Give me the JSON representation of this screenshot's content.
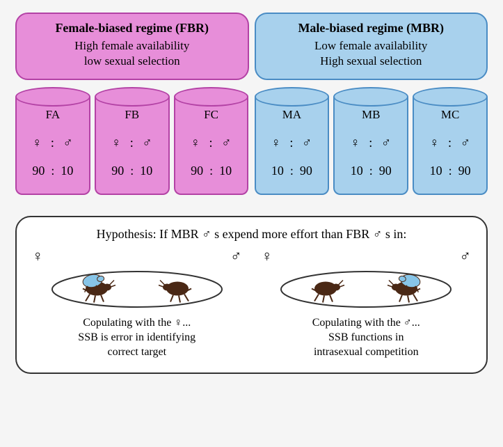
{
  "colors": {
    "fbr_fill": "#e78ed9",
    "fbr_border": "#b342a5",
    "mbr_fill": "#a8d1ed",
    "mbr_border": "#4a8cc4",
    "border_dark": "#333333",
    "bg_white": "#ffffff",
    "beetle_body": "#4a2815",
    "beetle_male": "#87c5e8"
  },
  "regimes": {
    "fbr": {
      "title": "Female-biased regime (FBR)",
      "line1": "High female availability",
      "line2": "low sexual selection",
      "cylinders": [
        {
          "label": "FA",
          "female": "90",
          "male": "10"
        },
        {
          "label": "FB",
          "female": "90",
          "male": "10"
        },
        {
          "label": "FC",
          "female": "90",
          "male": "10"
        }
      ]
    },
    "mbr": {
      "title": "Male-biased regime (MBR)",
      "line1": "Low female availability",
      "line2": "High sexual selection",
      "cylinders": [
        {
          "label": "MA",
          "female": "10",
          "male": "90"
        },
        {
          "label": "MB",
          "female": "10",
          "male": "90"
        },
        {
          "label": "MC",
          "female": "10",
          "male": "90"
        }
      ]
    }
  },
  "symbols": {
    "female": "♀",
    "male": "♂",
    "colon": ":"
  },
  "hypothesis": {
    "title_pre": "Hypothesis: If MBR ",
    "title_mid": "s expend more effort than FBR ",
    "title_post": "s in:",
    "left": {
      "line1_pre": "Copulating with the ",
      "line1_post": "...",
      "line2": "SSB is error in identifying",
      "line3": "correct target",
      "mount_side": "female"
    },
    "right": {
      "line1_pre": "Copulating with the ",
      "line1_post": "...",
      "line2": "SSB functions in",
      "line3": "intrasexual competition",
      "mount_side": "male"
    }
  },
  "fonts": {
    "body": 17,
    "title": 18
  }
}
